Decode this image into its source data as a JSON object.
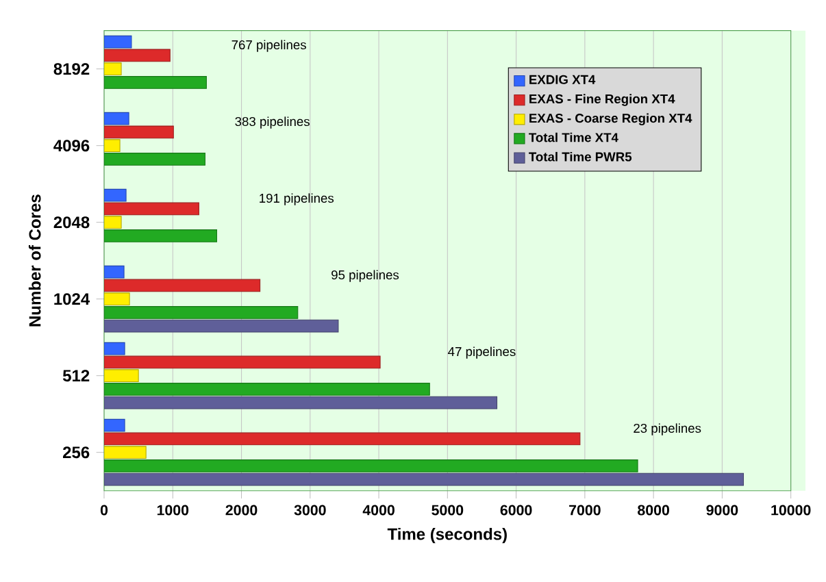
{
  "chart_data": {
    "type": "bar",
    "orientation": "horizontal",
    "xlabel": "Time (seconds)",
    "ylabel": "Number of Cores",
    "categories": [
      "8192",
      "4096",
      "2048",
      "1024",
      "512",
      "256"
    ],
    "series": [
      {
        "name": "EXDIG XT4",
        "color": "#3366ff",
        "values": [
          400,
          360,
          320,
          290,
          300,
          300
        ]
      },
      {
        "name": "EXAS - Fine Region XT4",
        "color": "#dd2a2a",
        "values": [
          960,
          1010,
          1380,
          2270,
          4020,
          6930
        ]
      },
      {
        "name": "EXAS - Coarse Region XT4",
        "color": "#ffee00",
        "values": [
          250,
          230,
          250,
          370,
          500,
          610
        ]
      },
      {
        "name": "Total Time XT4",
        "color": "#22aa22",
        "values": [
          1490,
          1470,
          1640,
          2820,
          4740,
          7770
        ]
      },
      {
        "name": "Total Time PWR5",
        "color": "#5f5f99",
        "values": [
          null,
          null,
          null,
          3410,
          5720,
          9310
        ]
      }
    ],
    "xlim": [
      0,
      10000
    ],
    "xticks": [
      0,
      1000,
      2000,
      3000,
      4000,
      5000,
      6000,
      7000,
      8000,
      9000,
      10000
    ],
    "grid": "x",
    "legend": "top right",
    "annotations": [
      "767 pipelines",
      "383 pipelines",
      "191 pipelines",
      "95 pipelines",
      "47 pipelines",
      "23 pipelines"
    ]
  }
}
